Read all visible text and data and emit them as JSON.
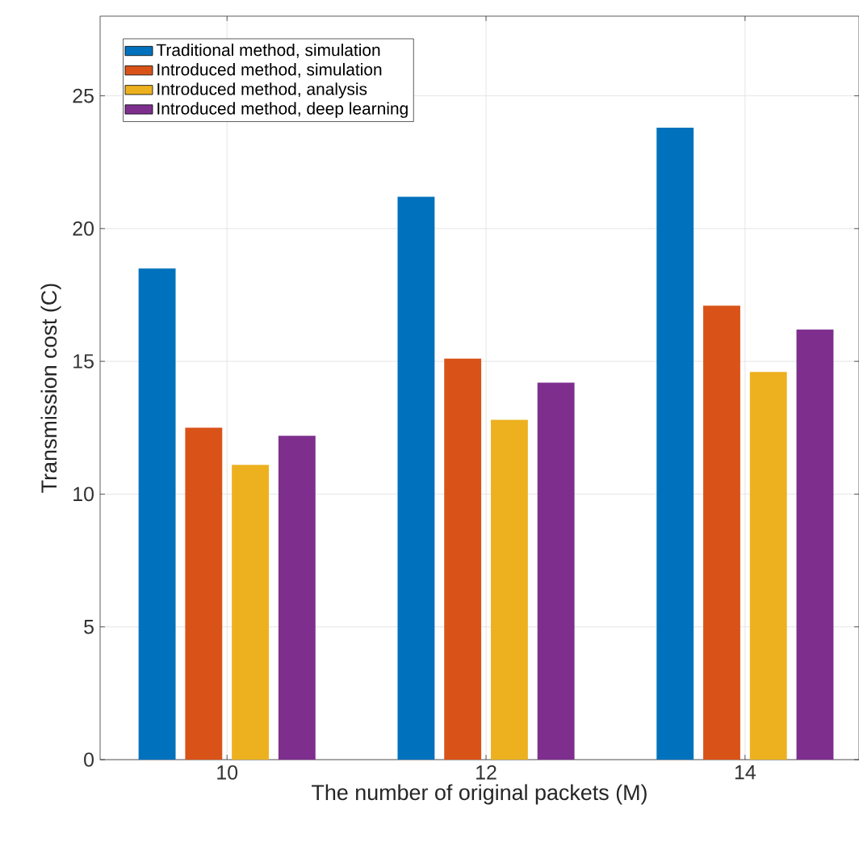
{
  "chart_data": {
    "type": "bar",
    "xlabel": "The number of original packets (M)",
    "ylabel": "Transmission cost (C)",
    "categories": [
      "10",
      "12",
      "14"
    ],
    "series": [
      {
        "name": "Traditional method, simulation",
        "color": "#0072bd",
        "values": [
          18.5,
          21.2,
          23.8
        ]
      },
      {
        "name": "Introduced method, simulation",
        "color": "#d95319",
        "values": [
          12.5,
          15.1,
          17.1
        ]
      },
      {
        "name": "Introduced method, analysis",
        "color": "#edb120",
        "values": [
          11.1,
          12.8,
          14.6
        ]
      },
      {
        "name": "Introduced method, deep learning",
        "color": "#7e2f8e",
        "values": [
          12.2,
          14.2,
          16.2
        ]
      }
    ],
    "ylim": [
      0,
      28
    ],
    "yticks": [
      0,
      5,
      10,
      15,
      20,
      25
    ],
    "grid": true,
    "legend": "top left"
  }
}
